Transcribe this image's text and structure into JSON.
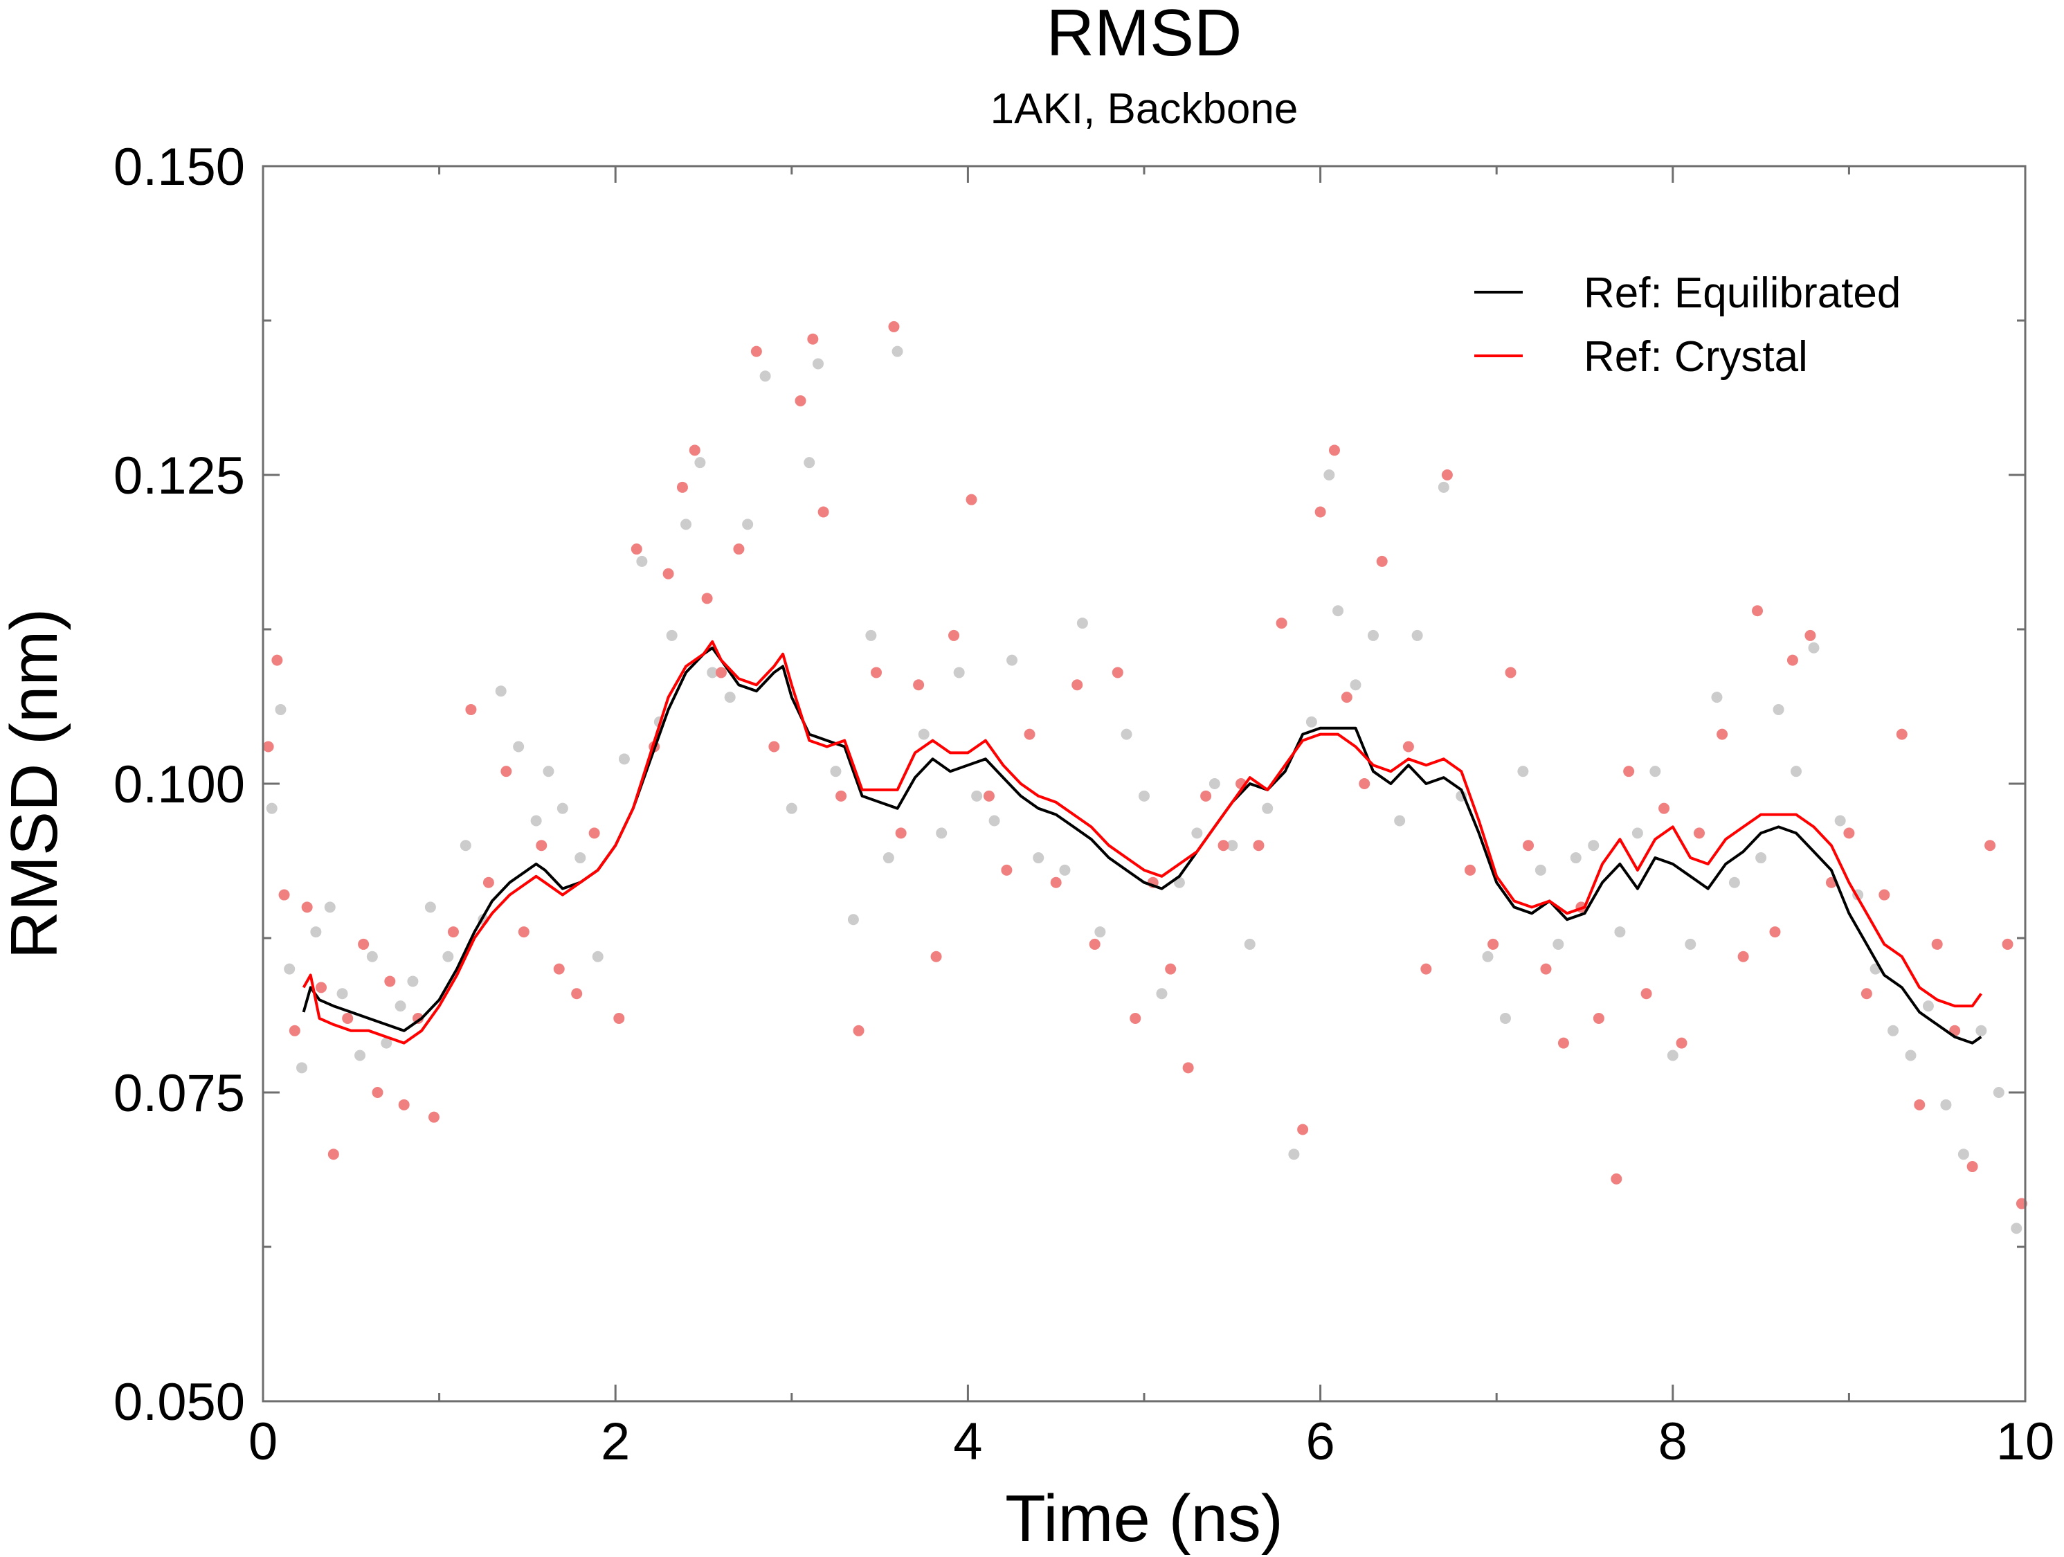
{
  "chart_data": {
    "type": "line",
    "title": "RMSD",
    "subtitle": "1AKI, Backbone",
    "xlabel": "Time (ns)",
    "ylabel": "RMSD (nm)",
    "xlim": [
      0,
      10
    ],
    "ylim": [
      0.05,
      0.15
    ],
    "x_ticks": [
      "0",
      "2",
      "4",
      "6",
      "8",
      "10"
    ],
    "y_ticks": [
      "0.050",
      "0.075",
      "0.100",
      "0.125",
      "0.150"
    ],
    "grid": false,
    "legend": {
      "placement": "top-right"
    },
    "series": [
      {
        "name": "Ref: Equilibrated",
        "kind": "line",
        "color": "#000000",
        "x": [
          0.23,
          0.27,
          0.32,
          0.4,
          0.5,
          0.6,
          0.7,
          0.8,
          0.9,
          1.0,
          1.1,
          1.2,
          1.3,
          1.4,
          1.5,
          1.55,
          1.6,
          1.7,
          1.8,
          1.9,
          2.0,
          2.1,
          2.2,
          2.3,
          2.4,
          2.5,
          2.55,
          2.6,
          2.7,
          2.8,
          2.9,
          2.95,
          3.0,
          3.1,
          3.2,
          3.3,
          3.4,
          3.5,
          3.6,
          3.7,
          3.8,
          3.9,
          4.0,
          4.1,
          4.2,
          4.3,
          4.4,
          4.5,
          4.6,
          4.7,
          4.8,
          4.9,
          5.0,
          5.1,
          5.2,
          5.3,
          5.4,
          5.5,
          5.6,
          5.7,
          5.8,
          5.9,
          6.0,
          6.1,
          6.2,
          6.3,
          6.4,
          6.5,
          6.6,
          6.7,
          6.8,
          6.9,
          7.0,
          7.1,
          7.2,
          7.3,
          7.4,
          7.5,
          7.6,
          7.7,
          7.8,
          7.9,
          8.0,
          8.1,
          8.2,
          8.3,
          8.4,
          8.5,
          8.6,
          8.7,
          8.8,
          8.9,
          9.0,
          9.1,
          9.2,
          9.3,
          9.4,
          9.5,
          9.6,
          9.7,
          9.75
        ],
        "y": [
          0.0815,
          0.0835,
          0.0825,
          0.082,
          0.0815,
          0.081,
          0.0805,
          0.08,
          0.081,
          0.0825,
          0.085,
          0.088,
          0.0905,
          0.092,
          0.093,
          0.0935,
          0.093,
          0.0915,
          0.092,
          0.093,
          0.095,
          0.098,
          0.102,
          0.106,
          0.109,
          0.1105,
          0.111,
          0.11,
          0.108,
          0.1075,
          0.109,
          0.1095,
          0.107,
          0.104,
          0.1035,
          0.103,
          0.099,
          0.0985,
          0.098,
          0.1005,
          0.102,
          0.101,
          0.1015,
          0.102,
          0.1005,
          0.099,
          0.098,
          0.0975,
          0.0965,
          0.0955,
          0.094,
          0.093,
          0.092,
          0.0915,
          0.0925,
          0.0945,
          0.0965,
          0.0985,
          0.1,
          0.0995,
          0.101,
          0.104,
          0.1045,
          0.1045,
          0.1045,
          0.101,
          0.1,
          0.1015,
          0.1,
          0.1005,
          0.0995,
          0.096,
          0.092,
          0.09,
          0.0895,
          0.0905,
          0.089,
          0.0895,
          0.092,
          0.0935,
          0.0915,
          0.094,
          0.0935,
          0.0925,
          0.0915,
          0.0935,
          0.0945,
          0.096,
          0.0965,
          0.096,
          0.0945,
          0.093,
          0.0895,
          0.087,
          0.0845,
          0.0835,
          0.0815,
          0.0805,
          0.0795,
          0.079,
          0.0795
        ]
      },
      {
        "name": "Ref: Crystal",
        "kind": "line",
        "color": "#ff0000",
        "x": [
          0.23,
          0.27,
          0.32,
          0.4,
          0.5,
          0.6,
          0.7,
          0.8,
          0.9,
          1.0,
          1.1,
          1.2,
          1.3,
          1.4,
          1.5,
          1.55,
          1.6,
          1.7,
          1.8,
          1.9,
          2.0,
          2.1,
          2.2,
          2.3,
          2.4,
          2.5,
          2.55,
          2.6,
          2.7,
          2.8,
          2.9,
          2.95,
          3.0,
          3.1,
          3.2,
          3.3,
          3.4,
          3.5,
          3.6,
          3.7,
          3.8,
          3.9,
          4.0,
          4.1,
          4.2,
          4.3,
          4.4,
          4.5,
          4.6,
          4.7,
          4.8,
          4.9,
          5.0,
          5.1,
          5.2,
          5.3,
          5.4,
          5.5,
          5.6,
          5.7,
          5.8,
          5.9,
          6.0,
          6.1,
          6.2,
          6.3,
          6.4,
          6.5,
          6.6,
          6.7,
          6.8,
          6.9,
          7.0,
          7.1,
          7.2,
          7.3,
          7.4,
          7.5,
          7.6,
          7.7,
          7.8,
          7.9,
          8.0,
          8.1,
          8.2,
          8.3,
          8.4,
          8.5,
          8.6,
          8.7,
          8.8,
          8.9,
          9.0,
          9.1,
          9.2,
          9.3,
          9.4,
          9.5,
          9.6,
          9.7,
          9.75
        ],
        "y": [
          0.0835,
          0.0845,
          0.081,
          0.0805,
          0.08,
          0.08,
          0.0795,
          0.079,
          0.08,
          0.082,
          0.0845,
          0.0875,
          0.0895,
          0.091,
          0.092,
          0.0925,
          0.092,
          0.091,
          0.092,
          0.093,
          0.095,
          0.098,
          0.1025,
          0.107,
          0.1095,
          0.1105,
          0.1115,
          0.11,
          0.1085,
          0.108,
          0.1095,
          0.1105,
          0.108,
          0.1035,
          0.103,
          0.1035,
          0.0995,
          0.0995,
          0.0995,
          0.1025,
          0.1035,
          0.1025,
          0.1025,
          0.1035,
          0.1015,
          0.1,
          0.099,
          0.0985,
          0.0975,
          0.0965,
          0.095,
          0.094,
          0.093,
          0.0925,
          0.0935,
          0.0945,
          0.0965,
          0.0985,
          0.1005,
          0.0995,
          0.1015,
          0.1035,
          0.104,
          0.104,
          0.103,
          0.1015,
          0.101,
          0.102,
          0.1015,
          0.102,
          0.101,
          0.097,
          0.0925,
          0.0905,
          0.09,
          0.0905,
          0.0895,
          0.09,
          0.0935,
          0.0955,
          0.093,
          0.0955,
          0.0965,
          0.094,
          0.0935,
          0.0955,
          0.0965,
          0.0975,
          0.0975,
          0.0975,
          0.0965,
          0.095,
          0.092,
          0.0895,
          0.087,
          0.086,
          0.0835,
          0.0825,
          0.082,
          0.082,
          0.083
        ]
      },
      {
        "name": "",
        "kind": "scatter",
        "color": "#cccccc",
        "x": [
          0.05,
          0.1,
          0.15,
          0.22,
          0.3,
          0.38,
          0.45,
          0.55,
          0.62,
          0.7,
          0.78,
          0.85,
          0.95,
          1.05,
          1.15,
          1.25,
          1.35,
          1.45,
          1.55,
          1.62,
          1.7,
          1.8,
          1.9,
          2.05,
          2.15,
          2.25,
          2.32,
          2.4,
          2.48,
          2.55,
          2.65,
          2.75,
          2.85,
          3.0,
          3.1,
          3.15,
          3.25,
          3.35,
          3.45,
          3.55,
          3.6,
          3.75,
          3.85,
          3.95,
          4.05,
          4.15,
          4.25,
          4.4,
          4.55,
          4.65,
          4.75,
          4.9,
          5.0,
          5.1,
          5.2,
          5.3,
          5.4,
          5.5,
          5.6,
          5.7,
          5.85,
          5.95,
          6.05,
          6.1,
          6.2,
          6.3,
          6.45,
          6.55,
          6.7,
          6.8,
          6.95,
          7.05,
          7.15,
          7.25,
          7.35,
          7.45,
          7.55,
          7.7,
          7.8,
          7.9,
          8.0,
          8.1,
          8.25,
          8.35,
          8.5,
          8.6,
          8.7,
          8.8,
          8.95,
          9.05,
          9.15,
          9.25,
          9.35,
          9.45,
          9.55,
          9.65,
          9.75,
          9.85,
          9.95
        ],
        "y": [
          0.098,
          0.106,
          0.085,
          0.077,
          0.088,
          0.09,
          0.083,
          0.078,
          0.086,
          0.079,
          0.082,
          0.084,
          0.09,
          0.086,
          0.095,
          0.089,
          0.1075,
          0.103,
          0.097,
          0.101,
          0.098,
          0.094,
          0.086,
          0.102,
          0.118,
          0.105,
          0.112,
          0.121,
          0.126,
          0.109,
          0.107,
          0.121,
          0.133,
          0.098,
          0.126,
          0.134,
          0.101,
          0.089,
          0.112,
          0.094,
          0.135,
          0.104,
          0.096,
          0.109,
          0.099,
          0.097,
          0.11,
          0.094,
          0.093,
          0.113,
          0.088,
          0.104,
          0.099,
          0.083,
          0.092,
          0.096,
          0.1,
          0.095,
          0.087,
          0.098,
          0.07,
          0.105,
          0.125,
          0.114,
          0.108,
          0.112,
          0.097,
          0.112,
          0.124,
          0.099,
          0.086,
          0.081,
          0.101,
          0.093,
          0.087,
          0.094,
          0.095,
          0.088,
          0.096,
          0.101,
          0.078,
          0.087,
          0.107,
          0.092,
          0.094,
          0.106,
          0.101,
          0.111,
          0.097,
          0.091,
          0.085,
          0.08,
          0.078,
          0.082,
          0.074,
          0.07,
          0.08,
          0.075,
          0.064
        ]
      },
      {
        "name": "",
        "kind": "scatter",
        "color": "#f08080",
        "x": [
          0.03,
          0.08,
          0.12,
          0.18,
          0.25,
          0.33,
          0.4,
          0.48,
          0.57,
          0.65,
          0.72,
          0.8,
          0.88,
          0.97,
          1.08,
          1.18,
          1.28,
          1.38,
          1.48,
          1.58,
          1.68,
          1.78,
          1.88,
          2.02,
          2.12,
          2.22,
          2.3,
          2.38,
          2.45,
          2.52,
          2.6,
          2.7,
          2.8,
          2.9,
          3.05,
          3.12,
          3.18,
          3.28,
          3.38,
          3.48,
          3.58,
          3.62,
          3.72,
          3.82,
          3.92,
          4.02,
          4.12,
          4.22,
          4.35,
          4.5,
          4.62,
          4.72,
          4.85,
          4.95,
          5.05,
          5.15,
          5.25,
          5.35,
          5.45,
          5.55,
          5.65,
          5.78,
          5.9,
          6.0,
          6.08,
          6.15,
          6.25,
          6.35,
          6.5,
          6.6,
          6.72,
          6.85,
          6.98,
          7.08,
          7.18,
          7.28,
          7.38,
          7.48,
          7.58,
          7.68,
          7.75,
          7.85,
          7.95,
          8.05,
          8.15,
          8.28,
          8.4,
          8.48,
          8.58,
          8.68,
          8.78,
          8.9,
          9.0,
          9.1,
          9.2,
          9.3,
          9.4,
          9.5,
          9.6,
          9.7,
          9.8,
          9.9,
          9.98
        ],
        "y": [
          0.103,
          0.11,
          0.091,
          0.08,
          0.09,
          0.0835,
          0.07,
          0.081,
          0.087,
          0.075,
          0.084,
          0.074,
          0.081,
          0.073,
          0.088,
          0.106,
          0.092,
          0.101,
          0.088,
          0.095,
          0.085,
          0.083,
          0.096,
          0.081,
          0.119,
          0.103,
          0.117,
          0.124,
          0.127,
          0.115,
          0.109,
          0.119,
          0.135,
          0.103,
          0.131,
          0.136,
          0.122,
          0.099,
          0.08,
          0.109,
          0.137,
          0.096,
          0.108,
          0.086,
          0.112,
          0.123,
          0.099,
          0.093,
          0.104,
          0.092,
          0.108,
          0.087,
          0.109,
          0.081,
          0.092,
          0.085,
          0.077,
          0.099,
          0.095,
          0.1,
          0.095,
          0.113,
          0.072,
          0.122,
          0.127,
          0.107,
          0.1,
          0.118,
          0.103,
          0.085,
          0.125,
          0.093,
          0.087,
          0.109,
          0.095,
          0.085,
          0.079,
          0.09,
          0.081,
          0.068,
          0.101,
          0.083,
          0.098,
          0.079,
          0.096,
          0.104,
          0.086,
          0.114,
          0.088,
          0.11,
          0.112,
          0.092,
          0.096,
          0.083,
          0.091,
          0.104,
          0.074,
          0.087,
          0.08,
          0.069,
          0.095,
          0.087,
          0.066
        ]
      }
    ]
  }
}
